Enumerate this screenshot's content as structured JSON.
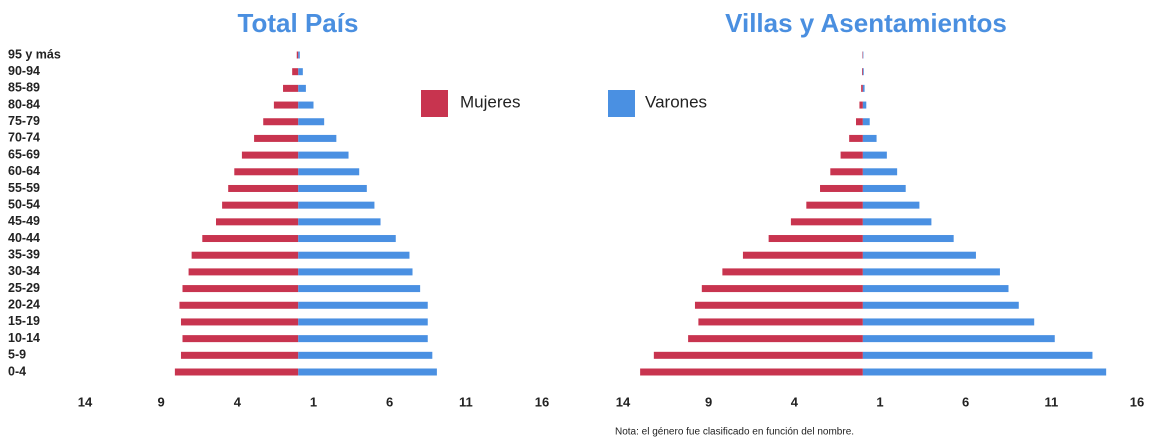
{
  "chart_data": [
    {
      "type": "pyramid",
      "title": "Total País",
      "categories": [
        "95 y más",
        "90-94",
        "85-89",
        "80-84",
        "75-79",
        "70-74",
        "65-69",
        "60-64",
        "55-59",
        "50-54",
        "45-49",
        "40-44",
        "35-39",
        "30-34",
        "25-29",
        "20-24",
        "15-19",
        "10-14",
        "5-9",
        "0-4"
      ],
      "series": [
        {
          "name": "Mujeres",
          "color": "#c8344f",
          "values": [
            -0.1,
            -0.4,
            -1.0,
            -1.6,
            -2.3,
            -2.9,
            -3.7,
            -4.2,
            -4.6,
            -5.0,
            -5.4,
            -6.3,
            -7.0,
            -7.2,
            -7.6,
            -7.8,
            -7.7,
            -7.6,
            -7.7,
            -8.1
          ]
        },
        {
          "name": "Varones",
          "color": "#4a90e2",
          "values": [
            0.1,
            0.3,
            0.5,
            1.0,
            1.7,
            2.5,
            3.3,
            4.0,
            4.5,
            5.0,
            5.4,
            6.4,
            7.3,
            7.5,
            8.0,
            8.5,
            8.5,
            8.5,
            8.8,
            9.1
          ]
        }
      ],
      "xlim": [
        -14,
        16
      ],
      "xticks": [
        {
          "value": -14,
          "label": "14"
        },
        {
          "value": -9,
          "label": "9"
        },
        {
          "value": -4,
          "label": "4"
        },
        1,
        6,
        11,
        16
      ]
    },
    {
      "type": "pyramid",
      "title": "Villas y Asentamientos",
      "series": [
        {
          "color": "#c8344f",
          "values": [
            -0.03,
            -0.05,
            -0.1,
            -0.2,
            -0.4,
            -0.8,
            -1.3,
            -1.9,
            -2.5,
            -3.3,
            -4.2,
            -5.5,
            -7.0,
            -8.2,
            -9.4,
            -9.8,
            -9.6,
            -10.2,
            -12.2,
            -13.0
          ]
        },
        {
          "color": "#4a90e2",
          "values": [
            0.03,
            0.05,
            0.1,
            0.2,
            0.4,
            0.8,
            1.4,
            2.0,
            2.5,
            3.3,
            4.0,
            5.3,
            6.6,
            8.0,
            8.5,
            9.1,
            10.0,
            11.2,
            13.4,
            14.2
          ]
        }
      ],
      "xlim": [
        -14,
        16
      ],
      "xticks": [
        {
          "value": -14,
          "label": "14"
        },
        {
          "value": -9,
          "label": "9"
        },
        {
          "value": -4,
          "label": "4"
        },
        1,
        6,
        11,
        16
      ],
      "note": "Nota: el género fue clasificado en función del nombre."
    }
  ]
}
